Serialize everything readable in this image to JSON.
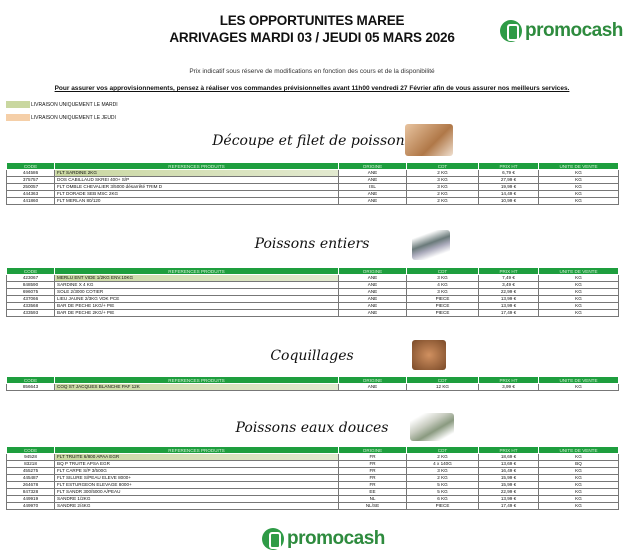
{
  "header": {
    "title1": "LES OPPORTUNITES MAREE",
    "title2": "ARRIVAGES MARDI 03 / JEUDI 05 MARS 2026",
    "brand": "promocash",
    "subtitle": "Prix indicatif sous réserve de modifications en fonction des cours et de la disponibilité",
    "notice": "Pour assurer vos approvisionnements, pensez à réaliser vos commandes prévisionnelles avant 11h00 vendredi 27 Février afin de vous assurer nos meilleurs services."
  },
  "legend": [
    {
      "label": "LIVRAISON UNIQUEMENT LE MARDI",
      "color": "#c9d7a0"
    },
    {
      "label": "LIVRAISON UNIQUEMENT LE JEUDI",
      "color": "#f5cfa8"
    }
  ],
  "columns": [
    "CODE",
    "REFERENCES PRODUITS",
    "ORIGINE",
    "CDT",
    "PRIX HT",
    "UNITE DE VENTE"
  ],
  "sections": [
    {
      "title": "Découpe et filet de poissons",
      "rows": [
        [
          "444586",
          "FLT SARDINE 2KG",
          "ANE",
          "2 KG",
          "6,79 €",
          "KG"
        ],
        [
          "375757",
          "DOS CABILLAUD SKREI 400+ S/P",
          "ANE",
          "3 KG",
          "27,99 €",
          "KG"
        ],
        [
          "250057",
          "FLT OMBLE CHEVALIER 3/5000 désarrêté TRIM D",
          "ISL",
          "3 KG",
          "19,99 €",
          "KG"
        ],
        [
          "444363",
          "FLT DORADE SEB MSC 2KG",
          "ANE",
          "2 KG",
          "14,49 €",
          "KG"
        ],
        [
          "441860",
          "FLT MERLAN 80/120",
          "ANE",
          "2 KG",
          "10,99 €",
          "KG"
        ]
      ]
    },
    {
      "title": "Poissons entiers",
      "rows": [
        [
          "423067",
          "MERLU ENT VIDE 1/2KG ENV.10KG",
          "ANE",
          "3 KG",
          "7,49 €",
          "KG"
        ],
        [
          "848590",
          "SARDINE X 4 KG",
          "ANE",
          "4 KG",
          "3,49 €",
          "KG"
        ],
        [
          "696075",
          "SOLE 2/3000 COTIER",
          "ANE",
          "3 KG",
          "22,99 €",
          "KG"
        ],
        [
          "437066",
          "LIEU JAUNE 2/3KG VDK PCE",
          "ANE",
          "PIECE",
          "13,99 €",
          "KG"
        ],
        [
          "433568",
          "BAR DE PECHE 1KG/+ PIE",
          "ANE",
          "PIECE",
          "13,99 €",
          "KG"
        ],
        [
          "433593",
          "BAR DE PECHE 2KG/+ PIE",
          "ANE",
          "PIECE",
          "17,49 €",
          "KG"
        ]
      ]
    },
    {
      "title": "Coquillages",
      "rows": [
        [
          "856643",
          "COQ ST JACQUES BLANCHE PAF 12K",
          "ANE",
          "12 KG",
          "3,99 €",
          "KG"
        ]
      ]
    },
    {
      "title": "Poissons eaux douces",
      "rows": [
        [
          "94528",
          "FLT TRUITE 6/800 APAA EGR",
          "FR",
          "2 KG",
          "18,69 €",
          "KG"
        ],
        [
          "83218",
          "BQ P TRUITE APSA EGR",
          "FR",
          "4 x 140G",
          "13,69 €",
          "BQ"
        ],
        [
          "455275",
          "FLT CARPE S/P 3/500G",
          "FR",
          "3 KG",
          "16,49 €",
          "KG"
        ],
        [
          "445487",
          "FLT SILURE S/PEAU ELEVE 8000+",
          "FR",
          "2 KG",
          "15,99 €",
          "KG"
        ],
        [
          "264678",
          "FLT ESTURGEON ELEVAGE 8000+",
          "FR",
          "5 KG",
          "15,99 €",
          "KG"
        ],
        [
          "847328",
          "FLT SANDR 300/5000 A/PEAU",
          "EE",
          "5 KG",
          "22,99 €",
          "KG"
        ],
        [
          "449919",
          "SANDRE 1/2KG",
          "NL",
          "6 KG",
          "13,99 €",
          "KG"
        ],
        [
          "449970",
          "SANDRE 2/4KG",
          "NL/SE",
          "PIECE",
          "17,49 €",
          "KG"
        ]
      ]
    }
  ]
}
